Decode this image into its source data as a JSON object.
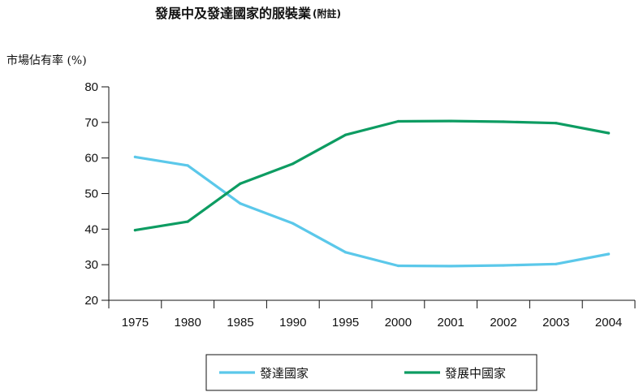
{
  "chart_data": {
    "type": "line",
    "title": "發展中及發達國家的服裝業",
    "title_note": "(附註)",
    "ylabel": "市場佔有率 (%)",
    "xlabel": "",
    "categories": [
      "1975",
      "1980",
      "1985",
      "1990",
      "1995",
      "2000",
      "2001",
      "2002",
      "2003",
      "2004"
    ],
    "ylim": [
      20,
      80
    ],
    "yticks": [
      20,
      30,
      40,
      50,
      60,
      70,
      80
    ],
    "grid": false,
    "legend_position": "bottom",
    "series": [
      {
        "name": "發達國家",
        "color": "#5bc8ea",
        "values": [
          60.3,
          57.9,
          47.2,
          41.6,
          33.5,
          29.7,
          29.6,
          29.8,
          30.2,
          33.0
        ]
      },
      {
        "name": "發展中國家",
        "color": "#0d9c62",
        "values": [
          39.7,
          42.1,
          52.8,
          58.4,
          66.5,
          70.3,
          70.4,
          70.2,
          69.8,
          67.0
        ]
      }
    ]
  }
}
